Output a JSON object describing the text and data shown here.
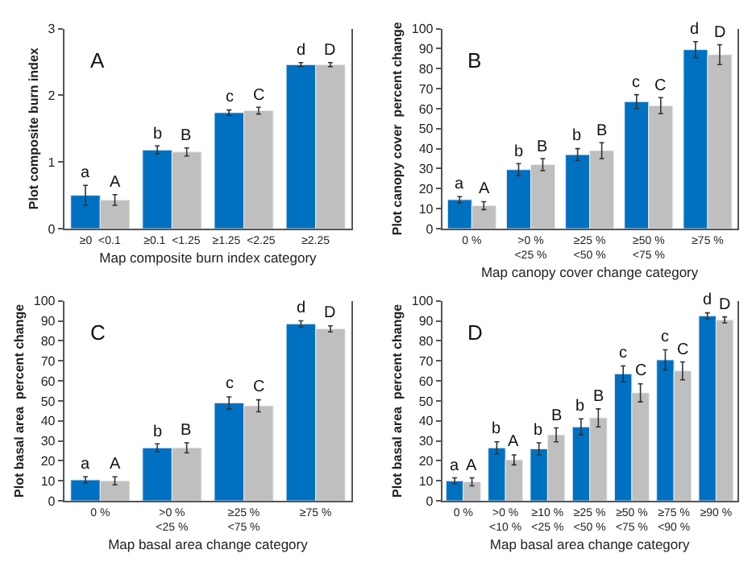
{
  "chart_data": [
    {
      "type": "bar",
      "title": "A",
      "xlabel": "Map composite burn index category",
      "ylabel": "Plot composite burn index",
      "categories": [
        "≥0  <0.1",
        "≥0.1  <1.25",
        "≥1.25  <2.25",
        "≥2.25"
      ],
      "ylim": [
        0,
        3
      ],
      "yticks": [
        0,
        1,
        2,
        3
      ],
      "series": [
        {
          "color": "#0070c0",
          "values": [
            0.5,
            1.18,
            1.74,
            2.46
          ],
          "errors": [
            0.15,
            0.06,
            0.04,
            0.03
          ],
          "value_labels": [
            "a",
            "b",
            "c",
            "d"
          ]
        },
        {
          "color": "#bfbfbf",
          "values": [
            0.43,
            1.15,
            1.77,
            2.46
          ],
          "errors": [
            0.08,
            0.06,
            0.05,
            0.03
          ],
          "value_labels": [
            "A",
            "B",
            "C",
            "D"
          ]
        }
      ]
    },
    {
      "type": "bar",
      "title": "B",
      "xlabel": "Map canopy cover change category",
      "ylabel": "Plot canopy cover  percent change",
      "categories": [
        "0 %",
        ">0 %\n<25 %",
        "≥25 %\n<50 %",
        "≥50 %\n<75 %",
        "≥75 %"
      ],
      "ylim": [
        0,
        100
      ],
      "yticks": [
        0,
        10,
        20,
        30,
        40,
        50,
        60,
        70,
        80,
        90,
        100
      ],
      "series": [
        {
          "color": "#0070c0",
          "values": [
            14.5,
            29.5,
            37,
            63.5,
            89.5
          ],
          "errors": [
            1.5,
            3,
            3,
            3.5,
            4
          ],
          "value_labels": [
            "a",
            "b",
            "b",
            "c",
            "d"
          ]
        },
        {
          "color": "#bfbfbf",
          "values": [
            11.5,
            32,
            39,
            61.5,
            87
          ],
          "errors": [
            2,
            3,
            4,
            4,
            5
          ],
          "value_labels": [
            "A",
            "B",
            "B",
            "C",
            "D"
          ]
        }
      ]
    },
    {
      "type": "bar",
      "title": "C",
      "xlabel": "Map basal area change category",
      "ylabel": "Plot basal area  percent change",
      "categories": [
        "0 %",
        ">0 %\n<25 %",
        "≥25 %\n<75 %",
        "≥75 %"
      ],
      "ylim": [
        0,
        100
      ],
      "yticks": [
        0,
        10,
        20,
        30,
        40,
        50,
        60,
        70,
        80,
        90,
        100
      ],
      "series": [
        {
          "color": "#0070c0",
          "values": [
            10.5,
            26.5,
            49,
            88.5
          ],
          "errors": [
            1.5,
            2,
            3,
            1.5
          ],
          "value_labels": [
            "a",
            "b",
            "c",
            "d"
          ]
        },
        {
          "color": "#bfbfbf",
          "values": [
            10,
            26.5,
            47.5,
            86
          ],
          "errors": [
            2,
            2.5,
            3,
            1.5
          ],
          "value_labels": [
            "A",
            "B",
            "C",
            "D"
          ]
        }
      ]
    },
    {
      "type": "bar",
      "title": "D",
      "xlabel": "Map basal area change category",
      "ylabel": "Plot basal area  percent change",
      "categories": [
        "0 %",
        ">0 %\n<10 %",
        "≥10 %\n<25 %",
        "≥25 %\n<50 %",
        "≥50 %\n<75 %",
        "≥75 %\n<90 %",
        "≥90 %"
      ],
      "ylim": [
        0,
        100
      ],
      "yticks": [
        0,
        10,
        20,
        30,
        40,
        50,
        60,
        70,
        80,
        90,
        100
      ],
      "series": [
        {
          "color": "#0070c0",
          "values": [
            10,
            26.5,
            26,
            37,
            63.5,
            70.5,
            92.5
          ],
          "errors": [
            1.5,
            3,
            3,
            4,
            4,
            5,
            1.5
          ],
          "value_labels": [
            "a",
            "b",
            "b",
            "b",
            "c",
            "c",
            "d"
          ]
        },
        {
          "color": "#bfbfbf",
          "values": [
            9.5,
            20.5,
            33,
            41.5,
            54,
            65,
            90.5
          ],
          "errors": [
            2,
            2.5,
            3.5,
            4.5,
            4.5,
            4.5,
            1.5
          ],
          "value_labels": [
            "A",
            "A",
            "B",
            "B",
            "C",
            "C",
            "D"
          ]
        }
      ]
    }
  ]
}
